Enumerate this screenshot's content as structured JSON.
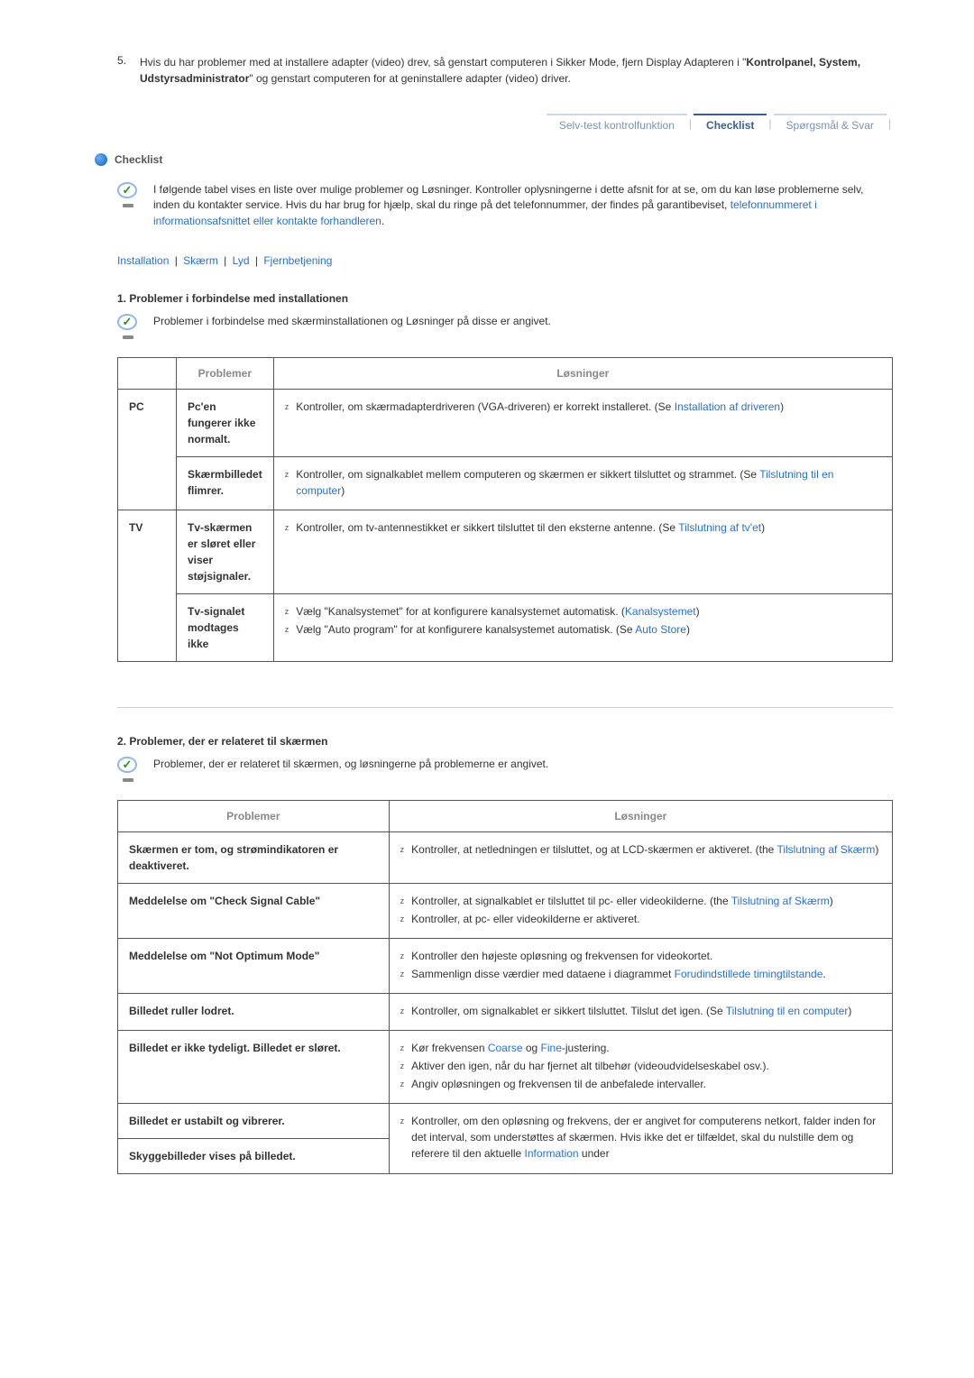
{
  "numbered": {
    "num": "5.",
    "text_before": "Hvis du har problemer med at installere adapter (video) drev, så genstart computeren i Sikker Mode, fjern Display Adapteren i \"",
    "text_bold": "Kontrolpanel, System, Udstyrsadministrator",
    "text_after": "\" og genstart computeren for at geninstallere adapter (video) driver."
  },
  "tabs": {
    "t1": "Selv-test kontrolfunktion",
    "t2": "Checklist",
    "t3": "Spørgsmål & Svar"
  },
  "section_header": "Checklist",
  "intro_text_1": "I følgende tabel vises en liste over mulige problemer og Løsninger. Kontroller oplysningerne i dette afsnit for at se, om du kan løse problemerne selv, inden du kontakter service. Hvis du har brug for hjælp, skal du ringe på det telefonnummer, der findes på garantibeviset, ",
  "intro_link": "telefonnummeret i informationsafsnittet eller kontakte forhandleren",
  "intro_period": ".",
  "navlinks": {
    "l1": "Installation",
    "l2": "Skærm",
    "l3": "Lyd",
    "l4": "Fjernbetjening"
  },
  "sec1": {
    "title": "1. Problemer i forbindelse med installationen",
    "intro": "Problemer i forbindelse med skærminstallationen og Løsninger på disse er angivet.",
    "th_cat": "",
    "th_prob": "Problemer",
    "th_sol": "Løsninger",
    "row1_cat": "PC",
    "row1_prob": "Pc'en fungerer ikke normalt.",
    "row1_sol": "Kontroller, om skærmadapterdriveren (VGA-driveren) er korrekt installeret. (Se ",
    "row1_link": "Installation af driveren",
    "row1_close": ")",
    "row2_prob": "Skærmbilledet flimrer.",
    "row2_sol": "Kontroller, om signalkablet mellem computeren og skærmen er sikkert tilsluttet og strammet. (Se ",
    "row2_link": "Tilslutning til en computer",
    "row2_close": ")",
    "row3_cat": "TV",
    "row3_prob": "Tv-skærmen er sløret eller viser støjsignaler.",
    "row3_sol": "Kontroller, om tv-antennestikket er sikkert tilsluttet til den eksterne antenne. (Se ",
    "row3_link": "Tilslutning af tv'et",
    "row3_close": ")",
    "row4_prob": "Tv-signalet modtages ikke",
    "row4_sol1": "Vælg \"Kanalsystemet\" for at konfigurere kanalsystemet automatisk. (",
    "row4_link1": "Kanalsystemet",
    "row4_close1": ")",
    "row4_sol2": "Vælg \"Auto program\" for at konfigurere kanalsystemet automatisk. (Se ",
    "row4_link2": "Auto Store",
    "row4_close2": ")"
  },
  "sec2": {
    "title": "2. Problemer, der er relateret til skærmen",
    "intro": "Problemer, der er relateret til skærmen, og løsningerne på problemerne er angivet.",
    "th_prob": "Problemer",
    "th_sol": "Løsninger",
    "r1_prob": "Skærmen er tom, og strømindikatoren er deaktiveret.",
    "r1_sol": "Kontroller, at netledningen er tilsluttet, og at LCD-skærmen er aktiveret. (the ",
    "r1_link": "Tilslutning af Skærm",
    "r1_close": ")",
    "r2_prob": "Meddelelse om \"Check Signal Cable\"",
    "r2_sol1": "Kontroller, at signalkablet er tilsluttet til pc- eller videokilderne. (the ",
    "r2_link1": "Tilslutning af Skærm",
    "r2_close1": ")",
    "r2_sol2": "Kontroller, at pc- eller videokilderne er aktiveret.",
    "r3_prob": "Meddelelse om \"Not Optimum Mode\"",
    "r3_sol1": "Kontroller den højeste opløsning og frekvensen for videokortet.",
    "r3_sol2": "Sammenlign disse værdier med dataene i diagrammet ",
    "r3_link2": "Forudindstillede timingtilstande",
    "r3_close2": ".",
    "r4_prob": "Billedet ruller lodret.",
    "r4_sol": "Kontroller, om signalkablet er sikkert tilsluttet. Tilslut det igen. (Se ",
    "r4_link": "Tilslutning til en computer",
    "r4_close": ")",
    "r5_prob": "Billedet er ikke tydeligt. Billedet er sløret.",
    "r5_sol1a": "Kør frekvensen ",
    "r5_link1a": "Coarse",
    "r5_sol1b": " og ",
    "r5_link1b": "Fine",
    "r5_sol1c": "-justering.",
    "r5_sol2": "Aktiver den igen, når du har fjernet alt tilbehør (videoudvidelseskabel osv.).",
    "r5_sol3": "Angiv opløsningen og frekvensen til de anbefalede intervaller.",
    "r6_prob": "Billedet er ustabilt og vibrerer.",
    "r6_sol": "Kontroller, om den opløsning og frekvens, der er angivet for computerens netkort, falder inden for det interval, som understøttes af skærmen. Hvis ikke det er tilfældet, skal du nulstille dem og referere til den aktuelle ",
    "r6_link": "Information",
    "r6_close": " under",
    "r7_prob": "Skyggebilleder vises på billedet."
  }
}
